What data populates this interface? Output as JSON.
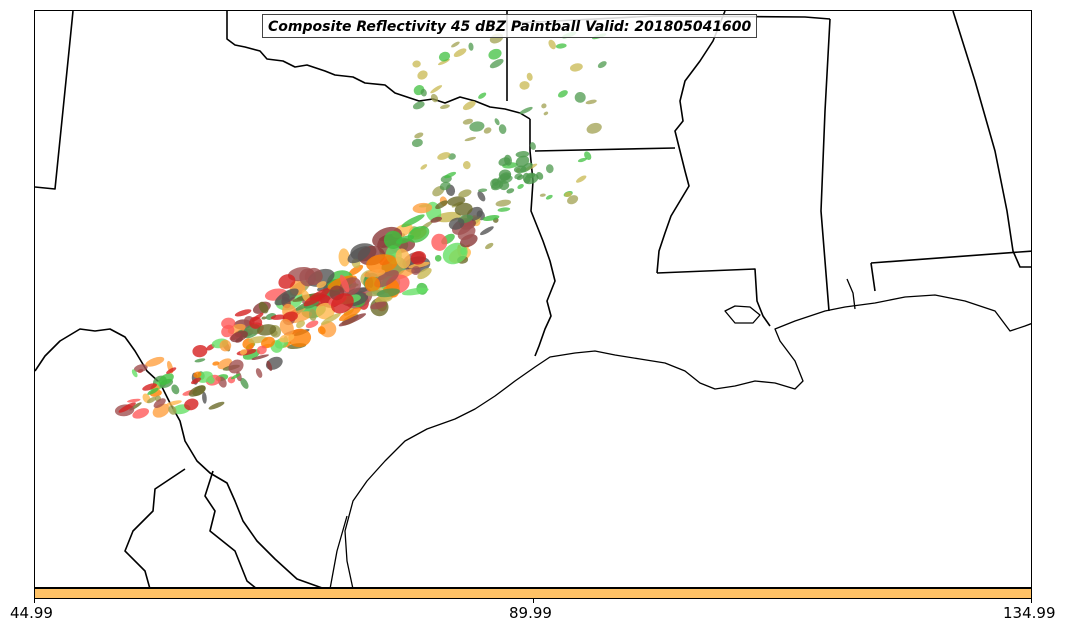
{
  "title": "Composite Reflectivity 45 dBZ Paintball Valid: 201805041600",
  "colorbar": {
    "color": "#ffc266",
    "ticks": [
      "44.99",
      "89.99",
      "134.99"
    ],
    "range": [
      44.99,
      134.99
    ]
  },
  "colors": {
    "boundary": "#000000",
    "paintball_palette": [
      "#d62020",
      "#ff5a5a",
      "#ff7f00",
      "#ffa040",
      "#ffb84d",
      "#c8b850",
      "#a0a050",
      "#4e9a4e",
      "#40c040",
      "#66e066",
      "#8b3a3a",
      "#a05050",
      "#555555",
      "#6b6b2a"
    ]
  }
}
